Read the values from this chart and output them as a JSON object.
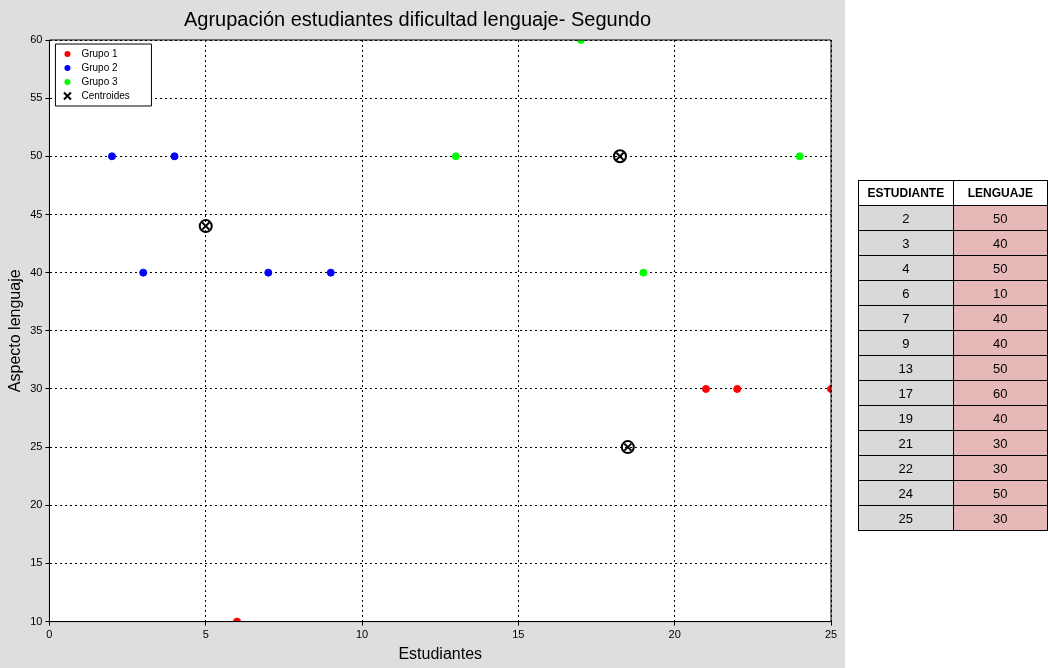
{
  "chart_data": [
    {
      "type": "scatter",
      "title": "Agrupación estudiantes dificultad lenguaje- Segundo",
      "xlabel": "Estudiantes",
      "ylabel": "Aspecto lenguaje",
      "xlim": [
        0,
        25
      ],
      "xticks": [
        0,
        5,
        10,
        15,
        20,
        25
      ],
      "ylim": [
        10,
        60
      ],
      "yticks": [
        10,
        15,
        20,
        25,
        30,
        35,
        40,
        45,
        50,
        55,
        60
      ],
      "grid": true,
      "legend": "top left",
      "marker": "circle",
      "series": [
        {
          "name": "Grupo 1",
          "color": "#ff0000",
          "x": [
            6,
            21,
            22,
            25
          ],
          "values": [
            10,
            30,
            30,
            30
          ]
        },
        {
          "name": "Grupo 2",
          "color": "#0000ff",
          "x": [
            2,
            3,
            4,
            7,
            9
          ],
          "values": [
            50,
            40,
            50,
            40,
            40
          ]
        },
        {
          "name": "Grupo 3",
          "color": "#00ff00",
          "x": [
            13,
            17,
            19,
            24
          ],
          "values": [
            50,
            60,
            40,
            50
          ]
        },
        {
          "name": "Centroides",
          "color": "#000000",
          "marker": "cross",
          "x": [
            5,
            18.25,
            18.5
          ],
          "values": [
            44,
            50,
            25
          ]
        }
      ]
    },
    {
      "type": "other",
      "annotations": [
        "ESTUDIANTE",
        "LENGUAJE",
        "2",
        "50",
        "3",
        "40",
        "4",
        "50",
        "6",
        "10",
        "7",
        "40",
        "9",
        "40",
        "13",
        "50",
        "17",
        "60",
        "19",
        "40",
        "21",
        "30",
        "22",
        "30",
        "24",
        "50",
        "25",
        "30"
      ]
    }
  ]
}
